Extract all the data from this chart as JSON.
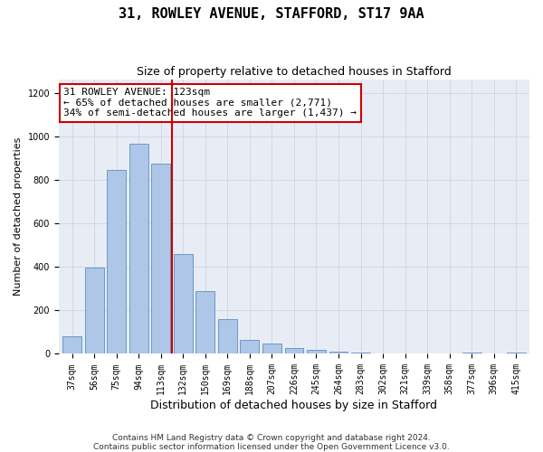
{
  "title": "31, ROWLEY AVENUE, STAFFORD, ST17 9AA",
  "subtitle": "Size of property relative to detached houses in Stafford",
  "xlabel": "Distribution of detached houses by size in Stafford",
  "ylabel": "Number of detached properties",
  "categories": [
    "37sqm",
    "56sqm",
    "75sqm",
    "94sqm",
    "113sqm",
    "132sqm",
    "150sqm",
    "169sqm",
    "188sqm",
    "207sqm",
    "226sqm",
    "245sqm",
    "264sqm",
    "283sqm",
    "302sqm",
    "321sqm",
    "339sqm",
    "358sqm",
    "377sqm",
    "396sqm",
    "415sqm"
  ],
  "values": [
    80,
    395,
    845,
    965,
    875,
    460,
    290,
    160,
    65,
    48,
    28,
    18,
    10,
    5,
    3,
    2,
    0,
    0,
    8,
    0,
    8
  ],
  "bar_color": "#aec6e8",
  "bar_edge_color": "#5a8fc0",
  "vline_x": 4.5,
  "vline_color": "#cc0000",
  "annotation_line1": "31 ROWLEY AVENUE: 123sqm",
  "annotation_line2": "← 65% of detached houses are smaller (2,771)",
  "annotation_line3": "34% of semi-detached houses are larger (1,437) →",
  "annotation_box_color": "#ffffff",
  "annotation_box_edge_color": "#cc0000",
  "ylim": [
    0,
    1260
  ],
  "yticks": [
    0,
    200,
    400,
    600,
    800,
    1000,
    1200
  ],
  "grid_color": "#d0d8e8",
  "bg_color": "#e8edf5",
  "footer_line1": "Contains HM Land Registry data © Crown copyright and database right 2024.",
  "footer_line2": "Contains public sector information licensed under the Open Government Licence v3.0.",
  "title_fontsize": 11,
  "subtitle_fontsize": 9,
  "xlabel_fontsize": 9,
  "ylabel_fontsize": 8,
  "tick_fontsize": 7,
  "annotation_fontsize": 8,
  "footer_fontsize": 6.5
}
